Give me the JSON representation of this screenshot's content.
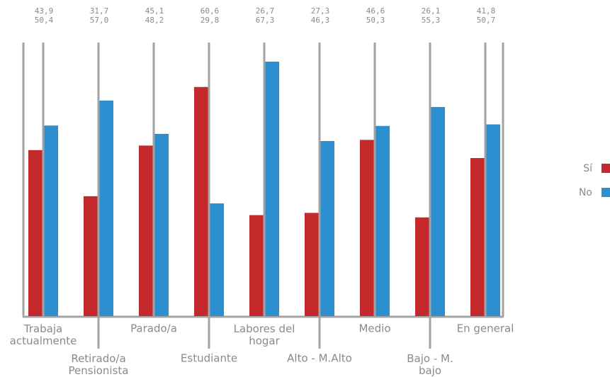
{
  "chart_data": {
    "type": "bar",
    "categories": [
      "Trabaja\nactualmente",
      "Retirado/a\nPensionista",
      "Parado/a",
      "Estudiante",
      "Labores del\nhogar",
      "Alto - M.Alto",
      "Medio",
      "Bajo - M.\nbajo",
      "En general"
    ],
    "series": [
      {
        "name": "Sí",
        "color": "#c42a2c",
        "values": [
          43.9,
          31.7,
          45.1,
          60.6,
          26.7,
          27.3,
          46.6,
          26.1,
          41.8
        ],
        "value_labels": [
          "43,9",
          "31,7",
          "45,1",
          "60,6",
          "26,7",
          "27,3",
          "46,6",
          "26,1",
          "41,8"
        ]
      },
      {
        "name": "No",
        "color": "#2b8fd0",
        "values": [
          50.4,
          57.0,
          48.2,
          29.8,
          67.3,
          46.3,
          50.3,
          55.3,
          50.7
        ],
        "value_labels": [
          "50,4",
          "57,0",
          "48,2",
          "29,8",
          "67,3",
          "46,3",
          "50,3",
          "55,3",
          "50,7"
        ]
      }
    ],
    "legend": "right"
  }
}
